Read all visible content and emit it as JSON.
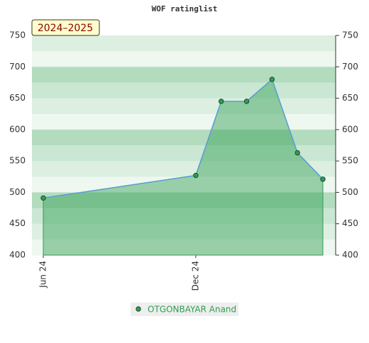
{
  "chart_data": {
    "type": "area",
    "title": "WOF ratinglist",
    "badge": "2024–2025",
    "x": [
      "2024-06",
      "2024-12",
      "2025-01",
      "2025-02",
      "2025-03",
      "2025-04",
      "2025-05"
    ],
    "series": [
      {
        "name": "OTGONBAYAR Anand",
        "color": "#2e9e4f",
        "line_color": "#5b9bd5",
        "values": [
          491,
          527,
          645,
          645,
          680,
          563,
          521
        ]
      }
    ],
    "xticks": [
      {
        "value": "2024-06",
        "label": "Jun 24"
      },
      {
        "value": "2024-12",
        "label": "Dec 24"
      }
    ],
    "ylim": [
      400,
      750
    ],
    "yticks": [
      400,
      450,
      500,
      550,
      600,
      650,
      700,
      750
    ]
  }
}
